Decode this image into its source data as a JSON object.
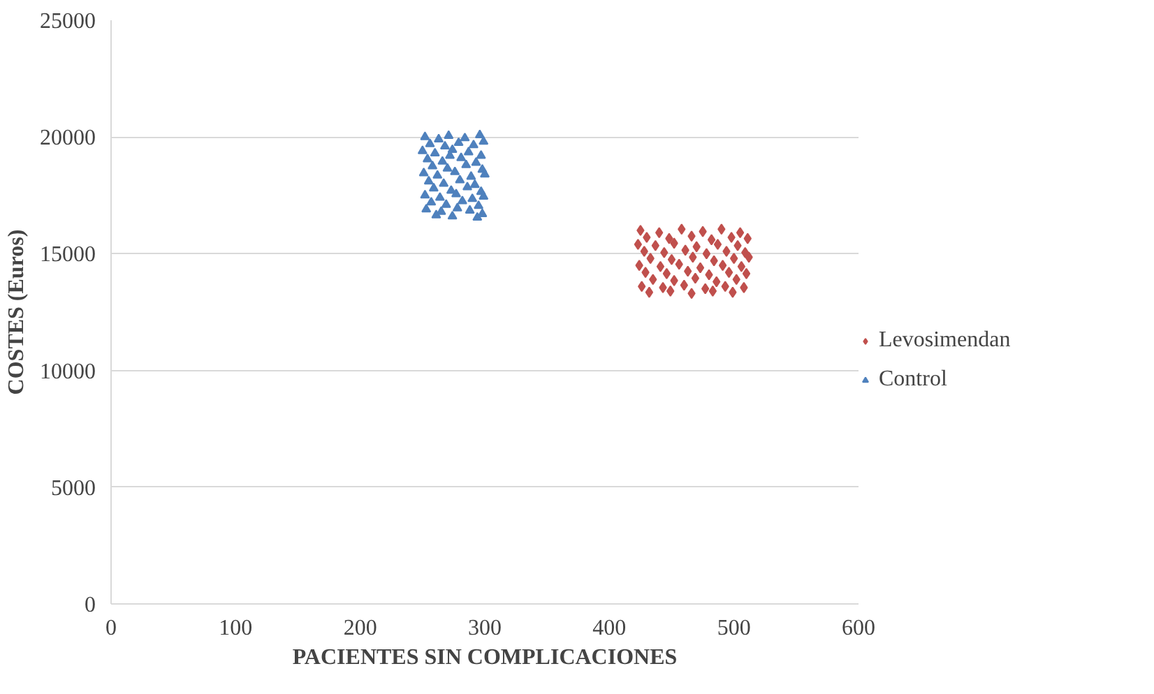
{
  "chart_data": {
    "type": "scatter",
    "xlabel": "PACIENTES SIN COMPLICACIONES",
    "ylabel": "COSTES (Euros)",
    "xlim": [
      0,
      600
    ],
    "xticks": [
      0,
      100,
      200,
      300,
      400,
      500,
      600
    ],
    "ylim": [
      0,
      25000
    ],
    "yticks": [
      0,
      5000,
      10000,
      15000,
      20000,
      25000
    ],
    "grid": "y",
    "legend": "right",
    "series": [
      {
        "name": "Levosimendan",
        "color": "#c0504d",
        "marker": "diamond",
        "x": [
          425,
          440,
          458,
          475,
          490,
          505,
          430,
          448,
          466,
          482,
          498,
          511,
          423,
          437,
          452,
          470,
          487,
          503,
          428,
          444,
          461,
          478,
          494,
          509,
          433,
          450,
          467,
          484,
          500,
          512,
          424,
          441,
          456,
          473,
          491,
          506,
          429,
          446,
          463,
          480,
          496,
          510,
          435,
          452,
          469,
          486,
          502,
          426,
          443,
          460,
          477,
          493,
          508,
          432,
          449,
          466,
          483,
          499
        ],
        "values": [
          16000,
          15900,
          16050,
          15950,
          16050,
          15900,
          15700,
          15650,
          15750,
          15600,
          15700,
          15650,
          15400,
          15350,
          15450,
          15300,
          15400,
          15350,
          15100,
          15050,
          15150,
          15000,
          15100,
          15050,
          14800,
          14750,
          14850,
          14700,
          14800,
          14850,
          14500,
          14450,
          14550,
          14400,
          14500,
          14450,
          14200,
          14150,
          14250,
          14100,
          14200,
          14150,
          13900,
          13850,
          13950,
          13800,
          13900,
          13600,
          13550,
          13650,
          13500,
          13600,
          13550,
          13350,
          13400,
          13300,
          13400,
          13350
        ]
      },
      {
        "name": "Control",
        "color": "#4f81bd",
        "marker": "triangle",
        "x": [
          252,
          263,
          271,
          284,
          296,
          256,
          268,
          279,
          291,
          299,
          250,
          260,
          274,
          287,
          297,
          254,
          266,
          281,
          293,
          258,
          270,
          285,
          298,
          251,
          262,
          276,
          289,
          300,
          255,
          267,
          280,
          292,
          259,
          273,
          286,
          297,
          252,
          264,
          277,
          290,
          299,
          257,
          269,
          282,
          295,
          253,
          265,
          278,
          288,
          298,
          261,
          274,
          294,
          272
        ],
        "values": [
          20000,
          19900,
          20050,
          19950,
          20080,
          19700,
          19600,
          19750,
          19650,
          19800,
          19400,
          19300,
          19450,
          19350,
          19200,
          19050,
          18950,
          19100,
          18900,
          18750,
          18650,
          18800,
          18600,
          18450,
          18350,
          18500,
          18300,
          18400,
          18100,
          18000,
          18150,
          17950,
          17800,
          17700,
          17850,
          17650,
          17500,
          17400,
          17550,
          17350,
          17450,
          17200,
          17100,
          17250,
          17050,
          16900,
          16800,
          16950,
          16850,
          16700,
          16650,
          16600,
          16550,
          19200
        ]
      }
    ]
  }
}
